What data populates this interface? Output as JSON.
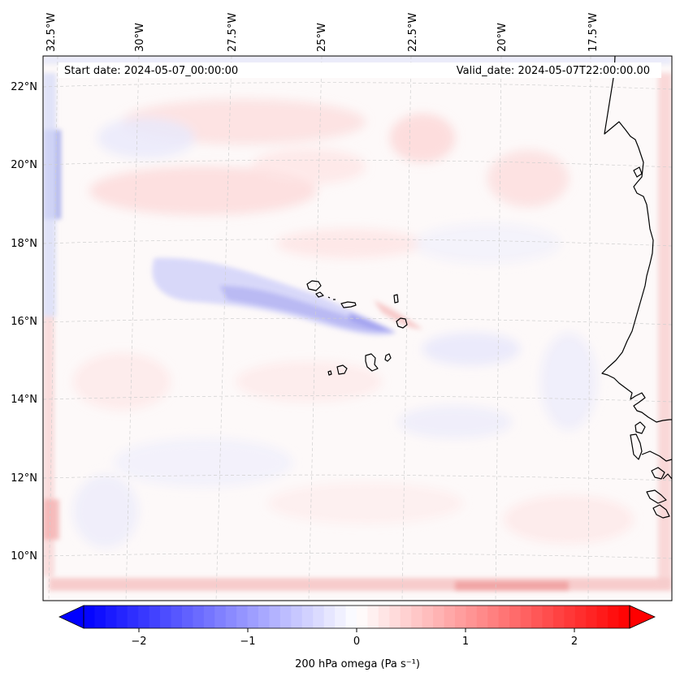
{
  "map": {
    "start_date_label": "Start date: 2024-05-07_00:00:00",
    "valid_date_label": "Valid_date: 2024-05-07T22:00:00.00",
    "lon_labels": [
      "32.5°W",
      "30°W",
      "27.5°W",
      "25°W",
      "22.5°W",
      "20°W",
      "17.5°W"
    ],
    "lat_labels": [
      "22°N",
      "20°N",
      "18°N",
      "16°N",
      "14°N",
      "12°N",
      "10°N"
    ],
    "gridlines": "dashed",
    "features": [
      "Cabo Verde islands",
      "West African coastline"
    ]
  },
  "colorbar": {
    "variable_label": "200 hPa omega (Pa s⁻¹)",
    "ticks": [
      "−2",
      "−1",
      "0",
      "1",
      "2"
    ],
    "range": [
      -2.5,
      2.5
    ],
    "colormap": "bwr",
    "extend": "both",
    "low_color": "#0000ff",
    "mid_color": "#ffffff",
    "high_color": "#ff0000"
  }
}
